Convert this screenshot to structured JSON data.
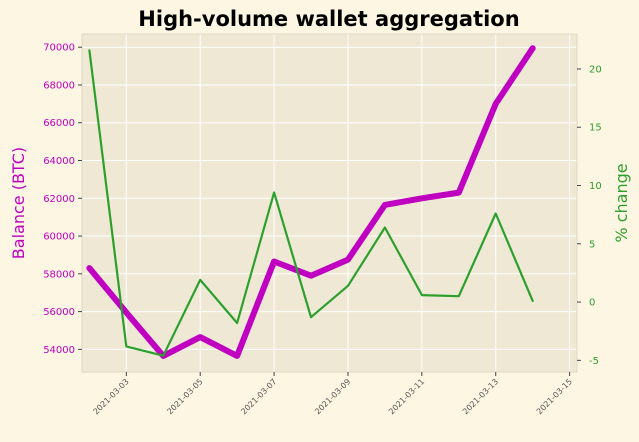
{
  "chart_data": {
    "type": "line",
    "title": "High-volume wallet aggregation",
    "xlabel": "",
    "ylabel_left": "Balance (BTC)",
    "ylabel_right": "% change",
    "x": [
      "2021-03-02",
      "2021-03-03",
      "2021-03-04",
      "2021-03-05",
      "2021-03-06",
      "2021-03-07",
      "2021-03-08",
      "2021-03-09",
      "2021-03-10",
      "2021-03-11",
      "2021-03-12",
      "2021-03-13",
      "2021-03-14"
    ],
    "x_ticks": [
      "2021-03-03",
      "2021-03-05",
      "2021-03-07",
      "2021-03-09",
      "2021-03-11",
      "2021-03-13",
      "2021-03-15"
    ],
    "xlim": [
      "2021-03-01T19:12",
      "2021-03-15T04:48"
    ],
    "ylim_left": [
      52800,
      70700
    ],
    "ylim_right": [
      -6.0,
      23.0
    ],
    "y_ticks_left": [
      54000,
      56000,
      58000,
      60000,
      62000,
      64000,
      66000,
      68000,
      70000
    ],
    "y_ticks_right": [
      -5,
      0,
      5,
      10,
      15,
      20
    ],
    "grid": true,
    "series": [
      {
        "axis": "left",
        "color": "#c000c0",
        "values": [
          58300,
          55950,
          53650,
          54650,
          53650,
          58650,
          57900,
          58750,
          61650,
          62000,
          62300,
          67000,
          69950
        ]
      },
      {
        "axis": "right",
        "color": "#2ca02c",
        "values": [
          21.6,
          -3.8,
          -4.6,
          1.9,
          -1.8,
          9.4,
          -1.3,
          1.4,
          6.4,
          0.6,
          0.5,
          7.6,
          0.1
        ]
      }
    ]
  }
}
